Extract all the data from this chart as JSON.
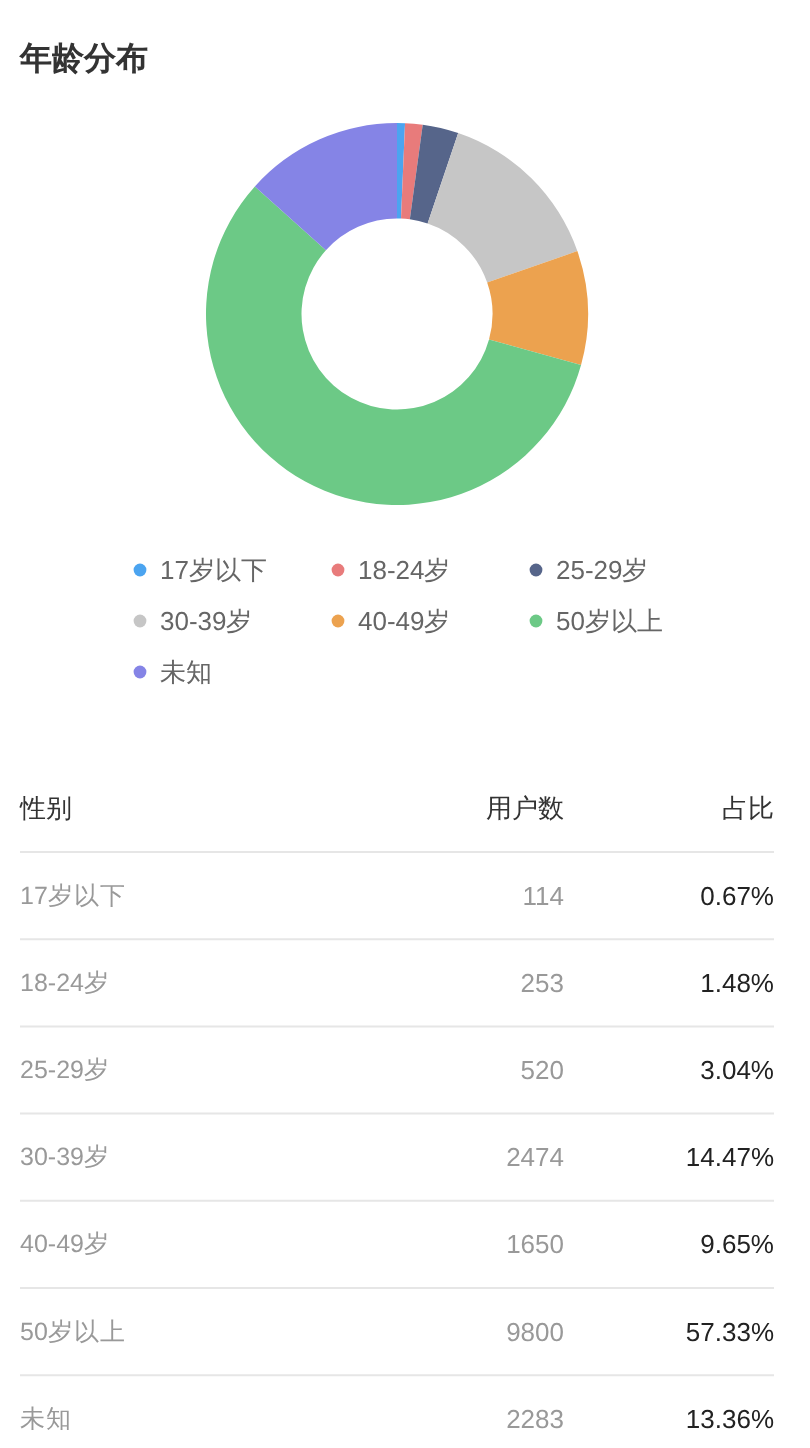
{
  "chart_data": [
    {
      "type": "donut",
      "title": "年龄分布",
      "categories": [
        "17岁以下",
        "18-24岁",
        "25-29岁",
        "30-39岁",
        "40-49岁",
        "50岁以上",
        "未知"
      ],
      "values": [
        0.67,
        1.48,
        3.04,
        14.47,
        9.65,
        57.33,
        13.36
      ],
      "colors": [
        "#4ba4f0",
        "#e87b7b",
        "#56658a",
        "#c6c6c6",
        "#eca24f",
        "#6cc986",
        "#8584e6"
      ],
      "legend": "bottom"
    },
    {
      "type": "other",
      "categories": [
        "17岁以下",
        "18-24岁",
        "25-29岁",
        "30-39岁",
        "40-49岁",
        "50岁以上",
        "未知"
      ],
      "series": [
        {
          "name": "用户数",
          "values": [
            114,
            253,
            520,
            2474,
            1650,
            9800,
            2283
          ]
        },
        {
          "name": "占比",
          "values": [
            0.67,
            1.48,
            3.04,
            14.47,
            9.65,
            57.33,
            13.36
          ],
          "value_labels": [
            "0.67%",
            "1.48%",
            "3.04%",
            "14.47%",
            "9.65%",
            "57.33%",
            "13.36%"
          ]
        }
      ],
      "data_labels": true,
      "annotations": [
        "性别"
      ]
    }
  ]
}
